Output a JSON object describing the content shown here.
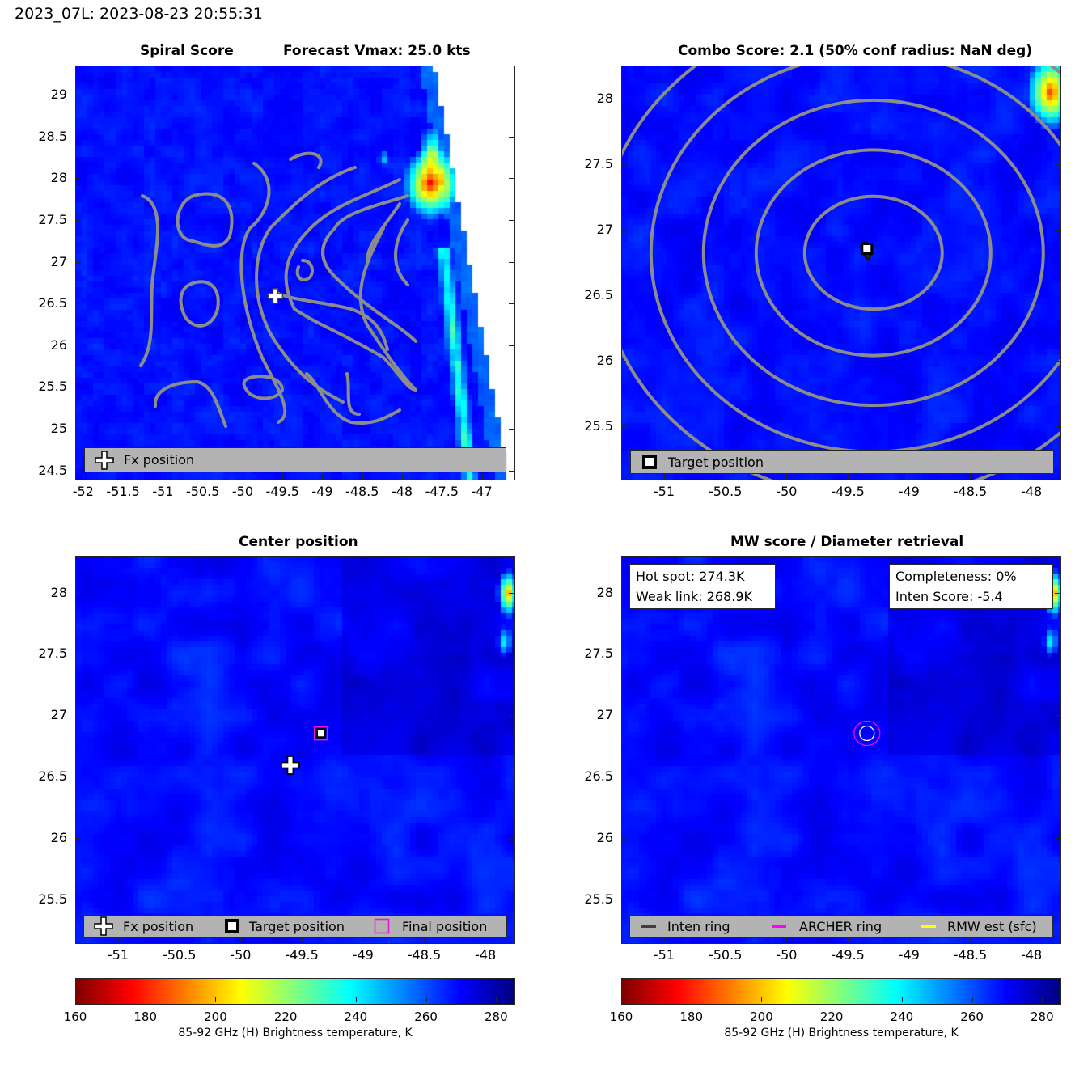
{
  "suptitle": "2023_07L: 2023-08-23 20:55:31",
  "colors": {
    "contour": "#8c8c8c",
    "legend_bg": "#b3b3b3",
    "final_position": "#e619d9",
    "archer_ring": "#ff00ff",
    "rmw": "#ffff00",
    "inten_ring": "#404040"
  },
  "colormap": "jet_reversed",
  "panels": [
    {
      "id": "spiral",
      "title_left": "Spiral Score",
      "title_right": "Forecast Vmax: 25.0 kts",
      "xticks": [
        "-52",
        "-51.5",
        "-51",
        "-50.5",
        "-50",
        "-49.5",
        "-49",
        "-48.5",
        "-48",
        "-47.5",
        "-47"
      ],
      "yticks": [
        "29",
        "28.5",
        "28",
        "27.5",
        "27",
        "26.5",
        "26",
        "25.5",
        "25",
        "24.5"
      ],
      "legend": [
        {
          "icon": "cross-icon",
          "label": "Fx position"
        }
      ]
    },
    {
      "id": "combo",
      "title": "Combo Score: 2.1  (50% conf radius: NaN deg)",
      "xticks": [
        "-51",
        "-50.5",
        "-50",
        "-49.5",
        "-49",
        "-48.5",
        "-48"
      ],
      "yticks": [
        "28",
        "27.5",
        "27",
        "26.5",
        "26",
        "25.5"
      ],
      "legend": [
        {
          "icon": "square-icon",
          "label": "Target position"
        }
      ]
    },
    {
      "id": "center",
      "title": "Center position",
      "xticks": [
        "-51",
        "-50.5",
        "-50",
        "-49.5",
        "-49",
        "-48.5",
        "-48"
      ],
      "yticks": [
        "28",
        "27.5",
        "27",
        "26.5",
        "26",
        "25.5"
      ],
      "legend": [
        {
          "icon": "cross-icon",
          "label": "Fx position"
        },
        {
          "icon": "square-icon",
          "label": "Target position"
        },
        {
          "icon": "magenta-square-icon",
          "label": "Final position"
        }
      ]
    },
    {
      "id": "mw",
      "title": "MW score / Diameter retrieval",
      "xticks": [
        "-51",
        "-50.5",
        "-50",
        "-49.5",
        "-49",
        "-48.5",
        "-48"
      ],
      "yticks": [
        "28",
        "27.5",
        "27",
        "26.5",
        "26",
        "25.5"
      ],
      "info_left": [
        "Hot spot: 274.3K",
        "Weak link: 268.9K"
      ],
      "info_right": [
        "Completeness: 0%",
        "Inten Score: -5.4"
      ],
      "legend": [
        {
          "icon": "dark-line-icon",
          "label": "Inten ring"
        },
        {
          "icon": "magenta-line-icon",
          "label": "ARCHER ring"
        },
        {
          "icon": "yellow-line-icon",
          "label": "RMW est (sfc)"
        }
      ]
    }
  ],
  "colorbar": {
    "label": "85-92 GHz (H) Brightness temperature, K",
    "ticks": [
      "160",
      "180",
      "200",
      "220",
      "240",
      "260",
      "280"
    ]
  },
  "chart_data": [
    {
      "type": "heatmap",
      "title": "Spiral Score",
      "subtitle": "Forecast Vmax: 25.0 kts",
      "xlim": [
        -52.1,
        -46.6
      ],
      "ylim": [
        24.4,
        29.35
      ],
      "fx_position": {
        "lon": -49.6,
        "lat": 26.6
      },
      "value_range_K": [
        160,
        285
      ]
    },
    {
      "type": "heatmap",
      "title": "Combo Score: 2.1  (50% conf radius: NaN deg)",
      "xlim": [
        -51.35,
        -47.77
      ],
      "ylim": [
        25.1,
        28.25
      ],
      "target_position": {
        "lon": -49.35,
        "lat": 26.86
      },
      "value_range_K": [
        160,
        285
      ]
    },
    {
      "type": "heatmap",
      "title": "Center position",
      "xlim": [
        -51.35,
        -47.77
      ],
      "ylim": [
        25.15,
        28.3
      ],
      "fx_position": {
        "lon": -49.6,
        "lat": 26.6
      },
      "target_position": {
        "lon": -49.35,
        "lat": 26.86
      },
      "final_position": {
        "lon": -49.35,
        "lat": 26.86
      },
      "value_range_K": [
        160,
        285
      ]
    },
    {
      "type": "heatmap",
      "title": "MW score / Diameter retrieval",
      "xlim": [
        -51.35,
        -47.77
      ],
      "ylim": [
        25.15,
        28.3
      ],
      "rings_center": {
        "lon": -49.35,
        "lat": 26.86
      },
      "hot_spot_K": 274.3,
      "weak_link_K": 268.9,
      "completeness_pct": 0,
      "inten_score": -5.4,
      "value_range_K": [
        160,
        285
      ]
    }
  ]
}
